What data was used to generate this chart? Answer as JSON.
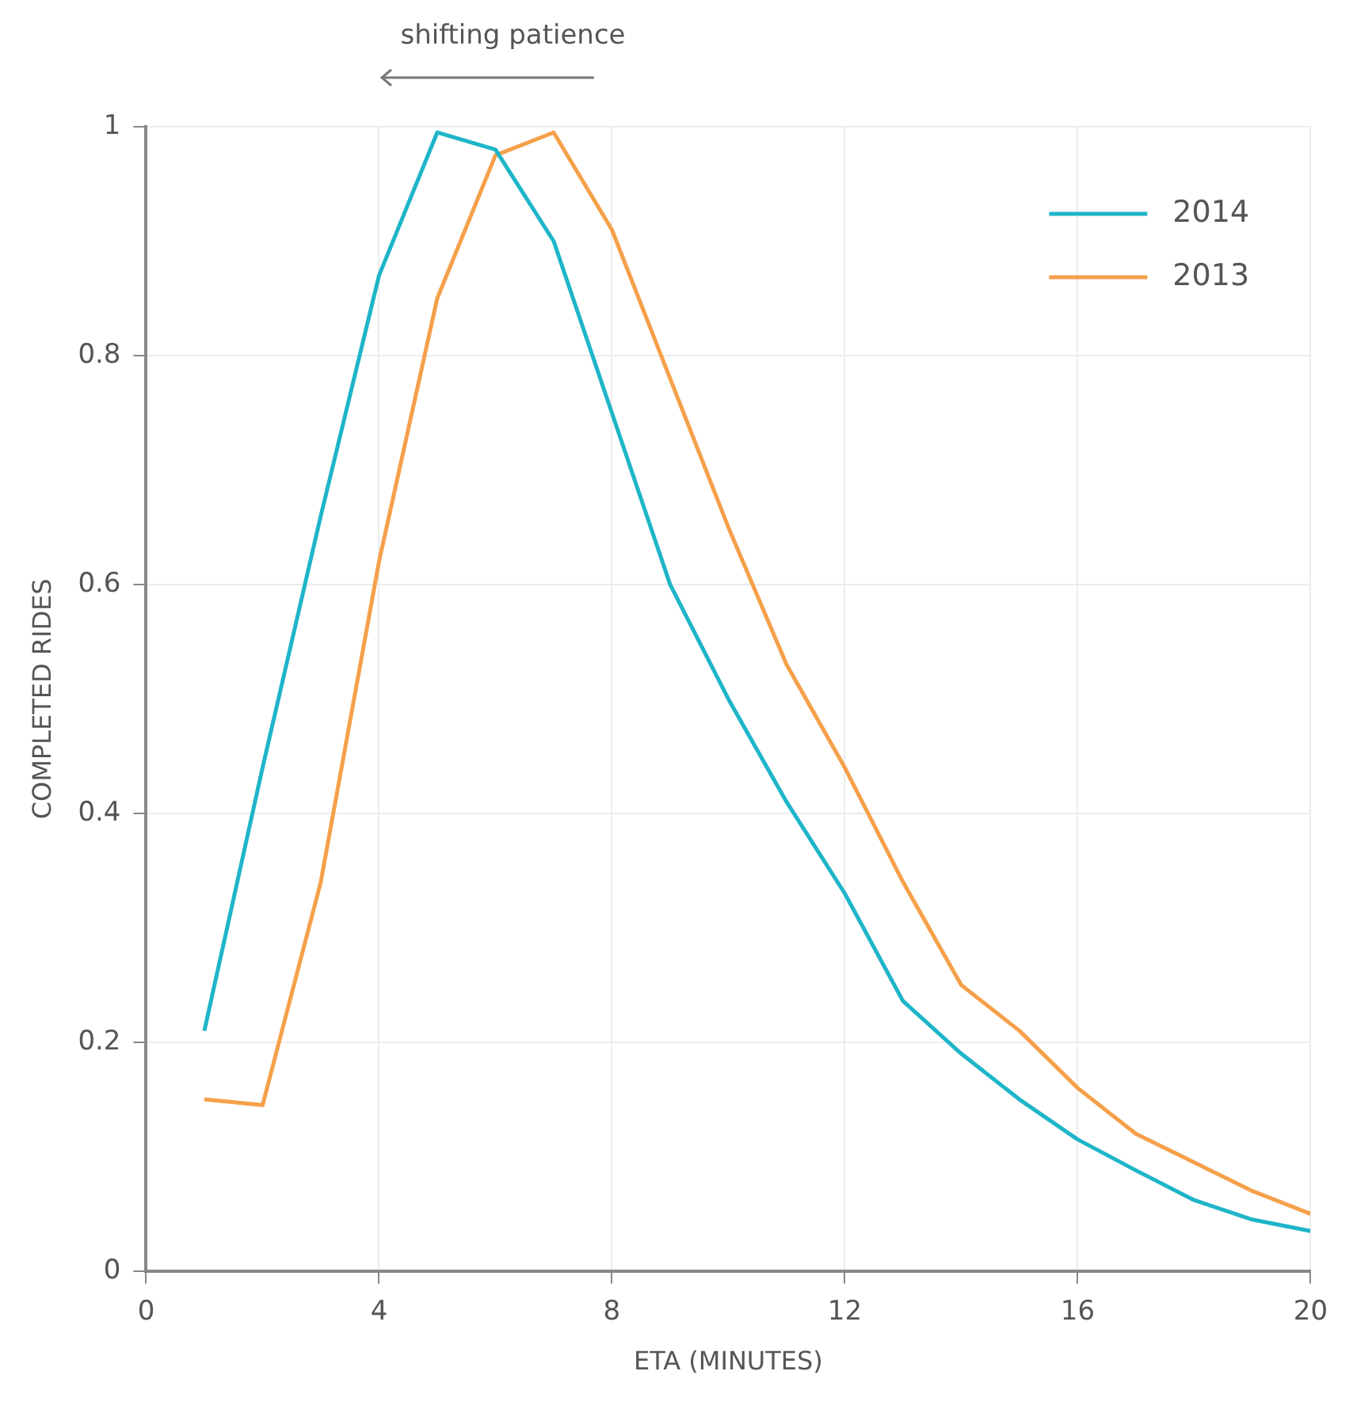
{
  "chart_data": {
    "type": "line",
    "xlabel": "ETA (MINUTES)",
    "ylabel": "COMPLETED RIDES",
    "annotations": [
      "shifting patience"
    ],
    "x": [
      1,
      2,
      3,
      4,
      5,
      6,
      7,
      8,
      9,
      10,
      11,
      12,
      13,
      14,
      15,
      16,
      17,
      18,
      19,
      20
    ],
    "series": [
      {
        "name": "2014",
        "color": "#1fb5c9",
        "values": [
          0.21,
          0.44,
          0.66,
          0.87,
          0.995,
          0.98,
          0.9,
          0.75,
          0.6,
          0.5,
          0.41,
          0.33,
          0.236,
          0.19,
          0.15,
          0.115,
          0.088,
          0.062,
          0.045,
          0.035
        ]
      },
      {
        "name": "2013",
        "color": "#f5a04a",
        "values": [
          0.15,
          0.145,
          0.34,
          0.62,
          0.85,
          0.975,
          0.995,
          0.91,
          0.78,
          0.65,
          0.53,
          0.44,
          0.34,
          0.25,
          0.21,
          0.16,
          0.12,
          0.095,
          0.07,
          0.05
        ]
      }
    ],
    "xlim": [
      0,
      20
    ],
    "xticks": [
      0,
      4,
      8,
      12,
      16,
      20
    ],
    "ylim": [
      0,
      1
    ],
    "yticks": [
      0,
      0.2,
      0.4,
      0.6,
      0.8,
      1
    ],
    "grid": true,
    "legend": "top right",
    "marker": "none",
    "line_style": "solid"
  }
}
